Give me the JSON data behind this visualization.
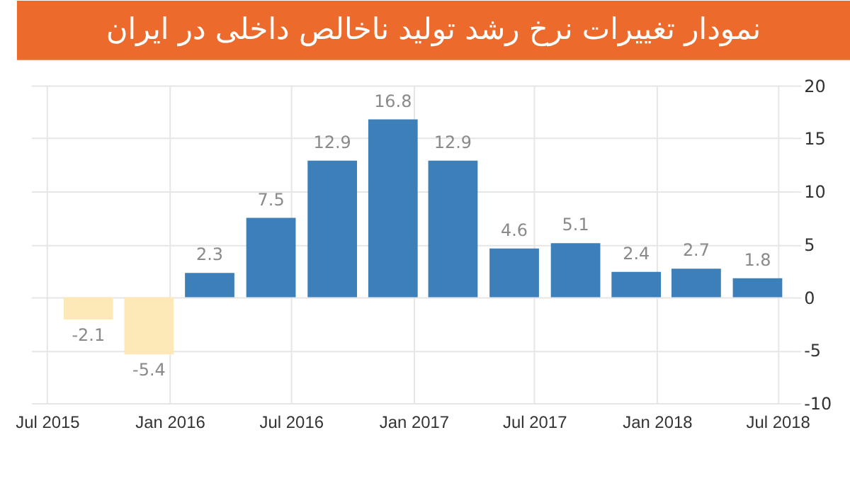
{
  "chart_data": {
    "type": "bar",
    "title": "نمودار تغییرات نرخ رشد تولید ناخالص داخلی در ایران",
    "x": [
      "2015-09-01",
      "2015-12-01",
      "2016-03-01",
      "2016-06-01",
      "2016-09-01",
      "2016-12-01",
      "2017-03-01",
      "2017-06-01",
      "2017-09-01",
      "2017-12-01",
      "2018-03-01",
      "2018-06-01"
    ],
    "values": [
      -2.1,
      -5.4,
      2.3,
      7.5,
      12.9,
      16.8,
      12.9,
      4.6,
      5.1,
      2.4,
      2.7,
      1.8
    ],
    "colors": [
      "#fde9b8",
      "#fde9b8",
      "#3d7fb8",
      "#3d7fb8",
      "#3d7fb8",
      "#3d7fb8",
      "#3d7fb8",
      "#3d7fb8",
      "#3d7fb8",
      "#3d7fb8",
      "#3d7fb8",
      "#3d7fb8"
    ],
    "xlim": [
      "2015-06-07",
      "2018-07-25"
    ],
    "xticks": [
      {
        "value": "2015-07-01",
        "label": "Jul 2015"
      },
      {
        "value": "2016-01-01",
        "label": "Jan 2016"
      },
      {
        "value": "2016-07-01",
        "label": "Jul 2016"
      },
      {
        "value": "2017-01-01",
        "label": "Jan 2017"
      },
      {
        "value": "2017-07-01",
        "label": "Jul 2017"
      },
      {
        "value": "2018-01-01",
        "label": "Jan 2018"
      },
      {
        "value": "2018-07-01",
        "label": "Jul 2018"
      }
    ],
    "ylim": [
      -10,
      20
    ],
    "yticks": [
      -10,
      -5,
      0,
      5,
      10,
      15,
      20
    ],
    "grid": true,
    "data_labels": true
  }
}
